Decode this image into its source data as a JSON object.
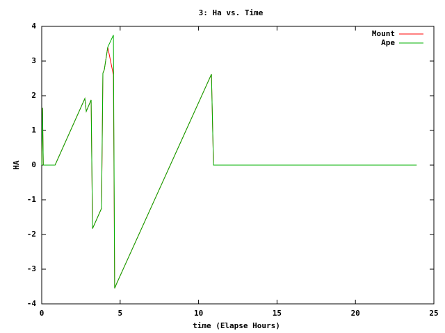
{
  "chart_data": {
    "type": "line",
    "title": "3: Ha vs. Time",
    "x_label": "time (Elapse Hours)",
    "y_label": "HA",
    "xlim": [
      0,
      25
    ],
    "xticks": [
      0,
      5,
      10,
      15,
      20,
      25
    ],
    "ylim": [
      -4,
      4
    ],
    "yticks": [
      -4,
      -3,
      -2,
      -1,
      0,
      1,
      2,
      3,
      4
    ],
    "legend": "top-right",
    "series": [
      {
        "name": "Mount",
        "color": "#ff0000",
        "x": [
          0,
          0.05,
          0.1,
          0.85,
          2.75,
          2.84,
          3.15,
          3.24,
          3.81,
          3.85,
          3.9,
          3.99,
          4.21,
          4.57,
          4.6,
          4.65,
          4.79,
          10.82,
          10.95,
          23.9
        ],
        "values": [
          0,
          1.65,
          0,
          0,
          1.92,
          1.55,
          1.88,
          -1.83,
          -1.25,
          0.35,
          2.65,
          2.75,
          3.4,
          2.6,
          0.4,
          -3.55,
          -3.4,
          2.62,
          0,
          0
        ]
      },
      {
        "name": "Ape",
        "color": "#00b000",
        "x": [
          0,
          0.05,
          0.1,
          0.85,
          2.75,
          2.84,
          3.15,
          3.24,
          3.81,
          3.9,
          3.99,
          4.21,
          4.57,
          4.65,
          4.79,
          10.82,
          10.95,
          23.9
        ],
        "values": [
          0,
          1.65,
          0,
          0,
          1.92,
          1.55,
          1.88,
          -1.83,
          -1.25,
          2.65,
          2.75,
          3.4,
          3.75,
          -3.55,
          -3.4,
          2.62,
          0,
          0
        ]
      }
    ]
  }
}
